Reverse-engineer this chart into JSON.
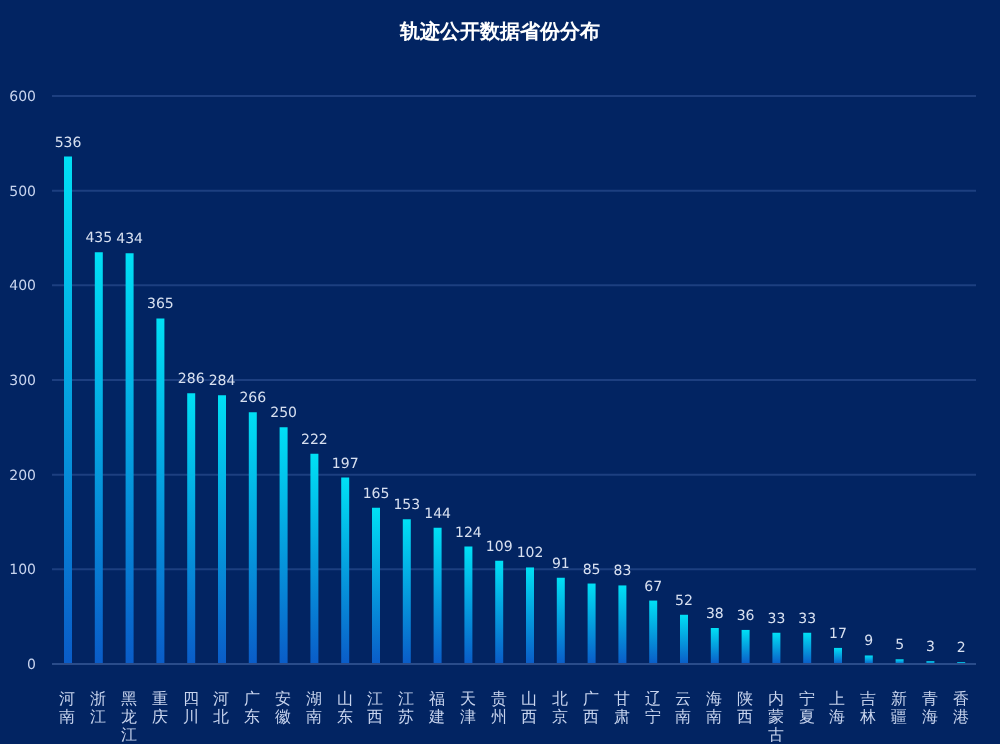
{
  "chart_data": {
    "type": "bar",
    "title": "轨迹公开数据省份分布",
    "categories": [
      "河南",
      "浙江",
      "黑龙江",
      "重庆",
      "四川",
      "河北",
      "广东",
      "安徽",
      "湖南",
      "山东",
      "江西",
      "江苏",
      "福建",
      "天津",
      "贵州",
      "山西",
      "北京",
      "广西",
      "甘肃",
      "辽宁",
      "云南",
      "海南",
      "陕西",
      "内蒙古",
      "宁夏",
      "上海",
      "吉林",
      "新疆",
      "青海",
      "香港"
    ],
    "values": [
      536,
      435,
      434,
      365,
      286,
      284,
      266,
      250,
      222,
      197,
      165,
      153,
      144,
      124,
      109,
      102,
      91,
      85,
      83,
      67,
      52,
      38,
      36,
      33,
      33,
      17,
      9,
      5,
      3,
      2
    ],
    "color": "#00e0f5",
    "ylim": [
      0,
      600
    ],
    "yticks": [
      0,
      100,
      200,
      300,
      400,
      500,
      600
    ],
    "grid": "y",
    "data_labels": true
  }
}
